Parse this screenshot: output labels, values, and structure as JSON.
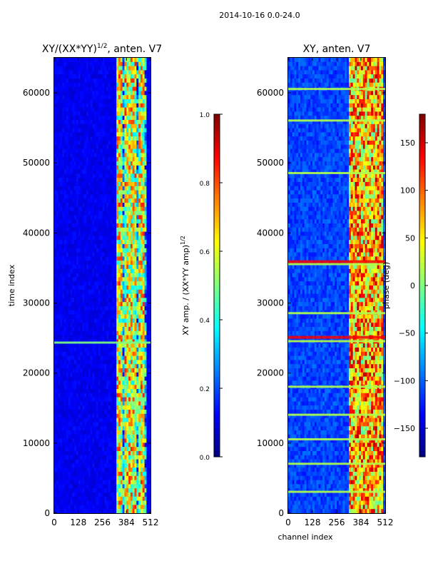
{
  "suptitle": "2014-10-16 0.0-24.0",
  "chart_data": [
    {
      "type": "heatmap",
      "title": "XY/(XX*YY)^{1/2}, anten. V7",
      "title_main": "XY/(XX*YY)",
      "title_exp": "1/2",
      "title_tail": ", anten. V7",
      "xlabel": "",
      "ylabel": "time index",
      "xlim": [
        0,
        512
      ],
      "ylim": [
        0,
        65000
      ],
      "xticks": [
        0,
        128,
        256,
        384,
        512
      ],
      "xtick_labels": [
        "0",
        "128",
        "256",
        "384",
        "512"
      ],
      "yticks": [
        0,
        10000,
        20000,
        30000,
        40000,
        50000,
        60000
      ],
      "ytick_labels": [
        "0",
        "10000",
        "20000",
        "30000",
        "40000",
        "50000",
        "60000"
      ],
      "colorbar": {
        "label": "XY amp. / (XX*YY amp)^{1/2}",
        "label_main": "XY amp. / (XX*YY amp)",
        "label_exp": "1/2",
        "range": [
          0.0,
          1.0
        ],
        "ticks": [
          0.0,
          0.2,
          0.4,
          0.6,
          0.8,
          1.0
        ],
        "tick_labels": [
          "0.0",
          "0.2",
          "0.4",
          "0.6",
          "0.8",
          "1.0"
        ],
        "colormap": "jet"
      },
      "hot_channel_range": [
        330,
        490
      ],
      "features": "low values (~0.05) in channels 0-330; high values (0.4-1.0) in channels ~330-490 with a clustered maximum around channel 384; bright horizontal band near time index 24500"
    },
    {
      "type": "heatmap",
      "title": "XY, anten. V7",
      "xlabel": "channel index",
      "ylabel": "",
      "xlim": [
        0,
        512
      ],
      "ylim": [
        0,
        65000
      ],
      "xticks": [
        0,
        128,
        256,
        384,
        512
      ],
      "xtick_labels": [
        "0",
        "128",
        "256",
        "384",
        "512"
      ],
      "yticks": [
        0,
        10000,
        20000,
        30000,
        40000,
        50000,
        60000
      ],
      "ytick_labels": [
        "0",
        "10000",
        "20000",
        "30000",
        "40000",
        "50000",
        "60000"
      ],
      "colorbar": {
        "label": "phase (deg)",
        "range": [
          -180,
          180
        ],
        "ticks": [
          -150,
          -100,
          -50,
          0,
          50,
          100,
          150
        ],
        "tick_labels": [
          "−150",
          "−100",
          "−50",
          "0",
          "50",
          "100",
          "150"
        ],
        "colormap": "jet"
      },
      "hot_channel_range": [
        320,
        500
      ],
      "features": "phase near -120 deg across most channels; mixed phase 0-180 deg in channels ~320-500; horizontal bands of higher phase throughout; red phase bands near time index 25000 and 35500"
    }
  ]
}
